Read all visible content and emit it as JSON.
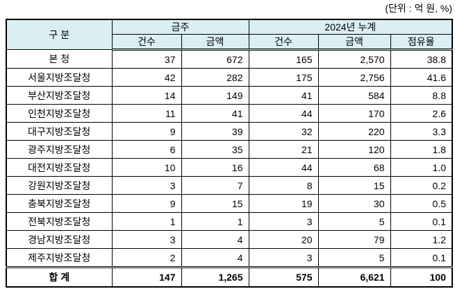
{
  "unit_note": "(단위 : 억 원, %)",
  "headers": {
    "category": "구 분",
    "group_week": "금주",
    "group_ytd": "2024년 누계",
    "count": "건수",
    "amount": "금액",
    "share": "점유율"
  },
  "rows": [
    {
      "name": "본 청",
      "week_count": "37",
      "week_amount": "672",
      "ytd_count": "165",
      "ytd_amount": "2,570",
      "share": "38.8"
    },
    {
      "name": "서울지방조달청",
      "week_count": "42",
      "week_amount": "282",
      "ytd_count": "175",
      "ytd_amount": "2,756",
      "share": "41.6"
    },
    {
      "name": "부산지방조달청",
      "week_count": "14",
      "week_amount": "149",
      "ytd_count": "41",
      "ytd_amount": "584",
      "share": "8.8"
    },
    {
      "name": "인천지방조달청",
      "week_count": "11",
      "week_amount": "41",
      "ytd_count": "44",
      "ytd_amount": "170",
      "share": "2.6"
    },
    {
      "name": "대구지방조달청",
      "week_count": "9",
      "week_amount": "39",
      "ytd_count": "32",
      "ytd_amount": "220",
      "share": "3.3"
    },
    {
      "name": "광주지방조달청",
      "week_count": "6",
      "week_amount": "35",
      "ytd_count": "21",
      "ytd_amount": "120",
      "share": "1.8"
    },
    {
      "name": "대전지방조달청",
      "week_count": "10",
      "week_amount": "16",
      "ytd_count": "44",
      "ytd_amount": "68",
      "share": "1.0"
    },
    {
      "name": "강원지방조달청",
      "week_count": "3",
      "week_amount": "7",
      "ytd_count": "8",
      "ytd_amount": "15",
      "share": "0.2"
    },
    {
      "name": "충북지방조달청",
      "week_count": "9",
      "week_amount": "15",
      "ytd_count": "19",
      "ytd_amount": "30",
      "share": "0.5"
    },
    {
      "name": "전북지방조달청",
      "week_count": "1",
      "week_amount": "1",
      "ytd_count": "3",
      "ytd_amount": "5",
      "share": "0.1"
    },
    {
      "name": "경남지방조달청",
      "week_count": "3",
      "week_amount": "4",
      "ytd_count": "20",
      "ytd_amount": "79",
      "share": "1.2"
    },
    {
      "name": "제주지방조달청",
      "week_count": "2",
      "week_amount": "4",
      "ytd_count": "3",
      "ytd_amount": "5",
      "share": "0.1"
    }
  ],
  "total": {
    "name": "합  계",
    "week_count": "147",
    "week_amount": "1,265",
    "ytd_count": "575",
    "ytd_amount": "6,621",
    "share": "100"
  },
  "colors": {
    "header_bg": "#daeef3"
  }
}
